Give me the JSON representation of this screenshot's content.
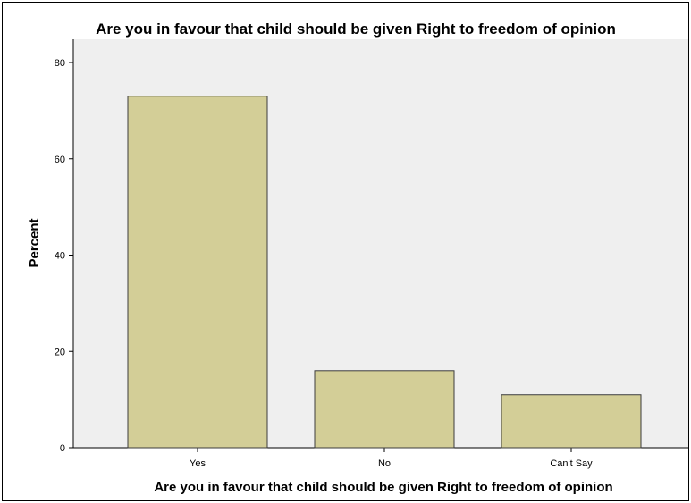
{
  "colors": {
    "plot_background": "#efefef",
    "bar_fill": "#d3ce97",
    "bar_stroke": "#3c3c3c",
    "axis": "#000000"
  },
  "chart_data": {
    "type": "bar",
    "title": "Are you in favour that child should be given Right to freedom of opinion",
    "xlabel": "Are you in favour that child should be given Right to freedom of opinion",
    "ylabel": "Percent",
    "categories": [
      "Yes",
      "No",
      "Can't Say"
    ],
    "values": [
      73,
      16,
      11
    ],
    "ylim": [
      0,
      80
    ],
    "yticks": [
      "0",
      "20",
      "40",
      "60",
      "80"
    ],
    "grid": false,
    "legend": "none"
  }
}
